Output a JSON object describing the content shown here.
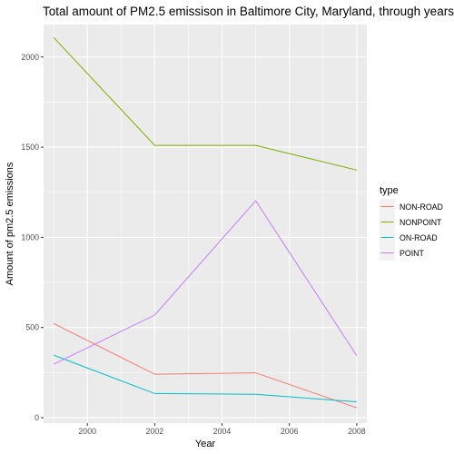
{
  "chart_data": {
    "type": "line",
    "title": "Total amount of PM2.5 emissison in Baltimore City, Maryland, through years",
    "xlabel": "Year",
    "ylabel": "Amount of pm2.5 emissions",
    "x": [
      1999,
      2002,
      2005,
      2008
    ],
    "xlim": [
      1998.7,
      2008.3
    ],
    "ylim": [
      -30,
      2180
    ],
    "xticks": [
      2000,
      2002,
      2004,
      2006,
      2008
    ],
    "yticks": [
      0,
      500,
      1000,
      1500,
      2000
    ],
    "xminor": [
      1999,
      2001,
      2003,
      2005,
      2007
    ],
    "yminor": [
      250,
      750,
      1250,
      1750
    ],
    "grid": true,
    "panel_background": "#ebebeb",
    "grid_color": "#ffffff",
    "legend": {
      "title": "type",
      "position": "right"
    },
    "series": [
      {
        "name": "NON-ROAD",
        "color": "#F8766D",
        "values": [
          522,
          241,
          249,
          55
        ]
      },
      {
        "name": "NONPOINT",
        "color": "#7CAE00",
        "values": [
          2108,
          1510,
          1510,
          1373
        ]
      },
      {
        "name": "ON-ROAD",
        "color": "#00BFC4",
        "values": [
          347,
          134,
          130,
          88
        ]
      },
      {
        "name": "POINT",
        "color": "#C77CFF",
        "values": [
          297,
          569,
          1203,
          344
        ]
      }
    ]
  }
}
